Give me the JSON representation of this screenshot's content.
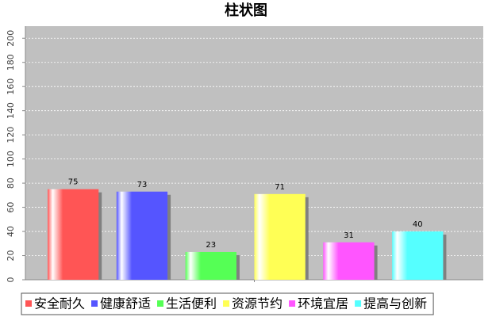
{
  "chart_data": {
    "type": "bar",
    "title": "柱状图",
    "categories": [
      null
    ],
    "series": [
      {
        "name": "安全耐久",
        "color": "#ff5555",
        "values": [
          75
        ]
      },
      {
        "name": "健康舒适",
        "color": "#5555ff",
        "values": [
          73
        ]
      },
      {
        "name": "生活便利",
        "color": "#55ff55",
        "values": [
          23
        ]
      },
      {
        "name": "资源节约",
        "color": "#ffff55",
        "values": [
          71
        ]
      },
      {
        "name": "环境宜居",
        "color": "#ff55ff",
        "values": [
          31
        ]
      },
      {
        "name": "提高与创新",
        "color": "#55ffff",
        "values": [
          40
        ]
      }
    ],
    "ylim": [
      0,
      210
    ],
    "yticks": [
      0,
      20,
      40,
      60,
      80,
      100,
      120,
      140,
      160,
      180,
      200
    ],
    "grid": true,
    "legend": "bottom"
  }
}
